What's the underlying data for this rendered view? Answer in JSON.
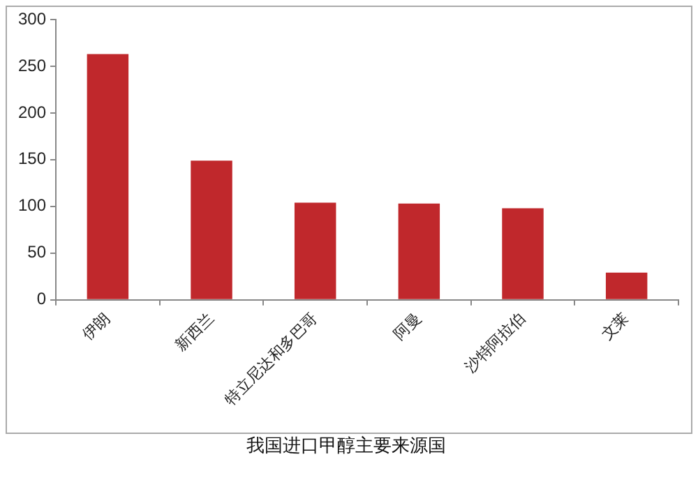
{
  "chart_data": {
    "type": "bar",
    "title": "我国进口甲醇主要来源国",
    "categories": [
      "伊朗",
      "新西兰",
      "特立尼达和多巴哥",
      "阿曼",
      "沙特阿拉伯",
      "文莱"
    ],
    "values": [
      263,
      149,
      104,
      103,
      98,
      29
    ],
    "color": "#c0282c",
    "ylim": [
      0,
      300
    ],
    "yticks": [
      0,
      50,
      100,
      150,
      200,
      250,
      300
    ],
    "grid": false,
    "legend": false
  }
}
